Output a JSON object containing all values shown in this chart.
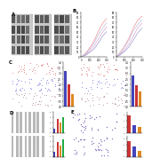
{
  "bg": "#ffffff",
  "panel_A": {
    "label": "A",
    "wb_bg": "#d8d8d8",
    "band_rows": 4,
    "band_color": "#888888"
  },
  "panel_B": {
    "label": "B",
    "colors": [
      "#d4a0c8",
      "#e88888",
      "#9090cc",
      "#b8b8e0"
    ],
    "x": [
      0,
      50,
      100,
      150,
      200,
      250,
      300
    ],
    "y_sets_L": [
      [
        0,
        4,
        12,
        22,
        36,
        50,
        62
      ],
      [
        0,
        7,
        18,
        32,
        52,
        68,
        78
      ],
      [
        0,
        3,
        9,
        16,
        28,
        42,
        52
      ],
      [
        0,
        5,
        16,
        28,
        45,
        58,
        70
      ]
    ],
    "y_sets_R": [
      [
        0,
        5,
        14,
        26,
        42,
        58,
        68
      ],
      [
        0,
        9,
        22,
        38,
        58,
        74,
        82
      ],
      [
        0,
        4,
        11,
        20,
        34,
        48,
        58
      ],
      [
        0,
        7,
        20,
        34,
        52,
        65,
        75
      ]
    ]
  },
  "panel_C": {
    "label": "C",
    "img_bg_dark": "#050510",
    "img_bg_merge": "#080818",
    "dot_colors": [
      "#cc2222",
      "#2222cc",
      "#884466"
    ],
    "bar_colors_L": [
      "#4444bb",
      "#cc3333",
      "#dd8822"
    ],
    "bar_colors_R": [
      "#4444bb",
      "#cc3333",
      "#dd8822"
    ],
    "bar_vals_L": [
      3.2,
      2.0,
      1.1
    ],
    "bar_vals_R": [
      2.8,
      1.9,
      1.4
    ],
    "bar_ylim": 4.0
  },
  "panel_D": {
    "label": "D",
    "scratch_bg": "#d0d0d0",
    "scratch_gap": "#ffffff",
    "bar_colors": [
      "#4444bb",
      "#cc3333",
      "#dd8822",
      "#22aa44"
    ],
    "bar_vals_T": [
      0.8,
      2.6,
      2.0,
      3.1
    ],
    "bar_vals_B": [
      0.9,
      2.9,
      2.2,
      3.3
    ],
    "bar_ylim": 4.0
  },
  "panel_E": {
    "label": "E",
    "inv_bg": "#e8e0f0",
    "dot_color": "#6644aa",
    "bar_colors": [
      "#cc3333",
      "#4444bb",
      "#dd8822"
    ],
    "bar_vals_T": [
      2.9,
      1.4,
      1.1
    ],
    "bar_vals_B": [
      2.6,
      1.7,
      0.9
    ],
    "bar_ylim": 3.5
  }
}
